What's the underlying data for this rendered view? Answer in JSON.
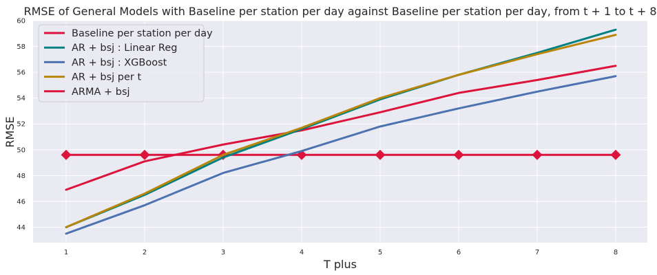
{
  "chart_data": {
    "type": "line",
    "title": "RMSE of General Models with Baseline per station per day against Baseline per station per day, from t + 1 to t + 8",
    "xlabel": "T plus",
    "ylabel": "RMSE",
    "x": [
      1,
      2,
      3,
      4,
      5,
      6,
      7,
      8
    ],
    "xticks": [
      "1",
      "2",
      "3",
      "4",
      "5",
      "6",
      "7",
      "8"
    ],
    "yticks": [
      "44",
      "46",
      "48",
      "50",
      "52",
      "54",
      "56",
      "58",
      "60"
    ],
    "ylim": [
      42.8,
      60
    ],
    "grid": true,
    "legend_position": "top-left",
    "series": [
      {
        "name": "Baseline per station per day",
        "color": "#DC143C",
        "marker": "diamond",
        "values": [
          49.6,
          49.6,
          49.6,
          49.6,
          49.6,
          49.6,
          49.6,
          49.6
        ]
      },
      {
        "name": "AR + bsj : Linear Reg",
        "color": "#008080",
        "marker": "none",
        "values": [
          44.0,
          46.5,
          49.4,
          51.6,
          53.9,
          55.8,
          57.5,
          59.3
        ]
      },
      {
        "name": "AR + bsj : XGBoost",
        "color": "#4C72B0",
        "marker": "none",
        "values": [
          43.5,
          45.7,
          48.2,
          49.9,
          51.8,
          53.2,
          54.5,
          55.7
        ]
      },
      {
        "name": "AR + bsj per t",
        "color": "#B8860B",
        "marker": "none",
        "values": [
          44.0,
          46.6,
          49.6,
          51.7,
          54.0,
          55.8,
          57.4,
          58.9
        ]
      },
      {
        "name": "ARMA + bsj",
        "color": "#DC143C",
        "marker": "none",
        "values": [
          46.9,
          49.1,
          50.4,
          51.5,
          52.9,
          54.4,
          55.4,
          56.5
        ]
      }
    ]
  }
}
